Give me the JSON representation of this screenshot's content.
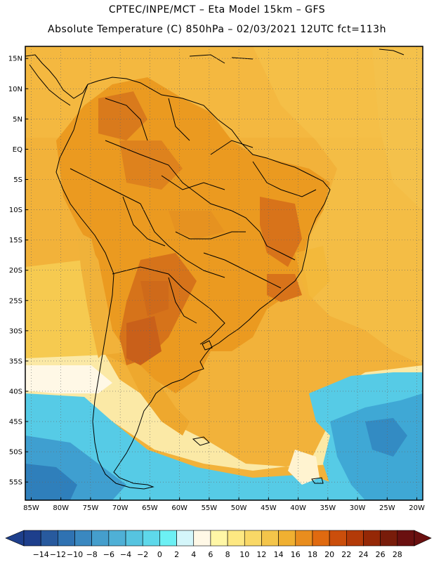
{
  "header": {
    "line1": "CPTEC/INPE/MCT –  Eta Model 15km – GFS",
    "line2": "Absolute Temperature (C) 850hPa – 02/03/2021 12UTC fct=113h"
  },
  "map": {
    "lat_labels": [
      "15N",
      "10N",
      "5N",
      "EQ",
      "5S",
      "10S",
      "15S",
      "20S",
      "25S",
      "30S",
      "35S",
      "40S",
      "45S",
      "50S",
      "55S"
    ],
    "lat_values": [
      15,
      10,
      5,
      0,
      -5,
      -10,
      -15,
      -20,
      -25,
      -30,
      -35,
      -40,
      -45,
      -50,
      -55
    ],
    "lon_labels": [
      "85W",
      "80W",
      "75W",
      "70W",
      "65W",
      "60W",
      "55W",
      "50W",
      "45W",
      "40W",
      "35W",
      "30W",
      "25W",
      "20W"
    ],
    "lon_values": [
      -85,
      -80,
      -75,
      -70,
      -65,
      -60,
      -55,
      -50,
      -45,
      -40,
      -35,
      -30,
      -25,
      -20
    ],
    "lon_range": [
      -86,
      -19
    ],
    "lat_range": [
      -58,
      17
    ],
    "grid": true
  },
  "colorbar": {
    "labels": [
      "-14",
      "-12",
      "-10",
      "-8",
      "-6",
      "-4",
      "-2",
      "0",
      "2",
      "4",
      "6",
      "8",
      "10",
      "12",
      "14",
      "16",
      "18",
      "20",
      "22",
      "24",
      "26",
      "28"
    ],
    "colors": [
      "#1e3f8c",
      "#285a9e",
      "#2f72b2",
      "#3a88c0",
      "#459ecc",
      "#4fb0d6",
      "#56c4e0",
      "#5ed8ea",
      "#6cf0f4",
      "#d4f6fa",
      "#fff8e6",
      "#fff7a6",
      "#fde882",
      "#f9d866",
      "#f4c54a",
      "#f0b031",
      "#e98d1e",
      "#e06a10",
      "#cb4e0b",
      "#b33a08",
      "#952806",
      "#781c0a",
      "#6a1010"
    ]
  },
  "colors": {
    "land_orange": "#eb9a20",
    "land_dark": "#d8751a",
    "ocean_gold": "#f2b23a",
    "ocean_yellow": "#f7cf55",
    "cyan": "#53cbe6",
    "blue": "#3f9fd0",
    "pale": "#fff3d0"
  }
}
